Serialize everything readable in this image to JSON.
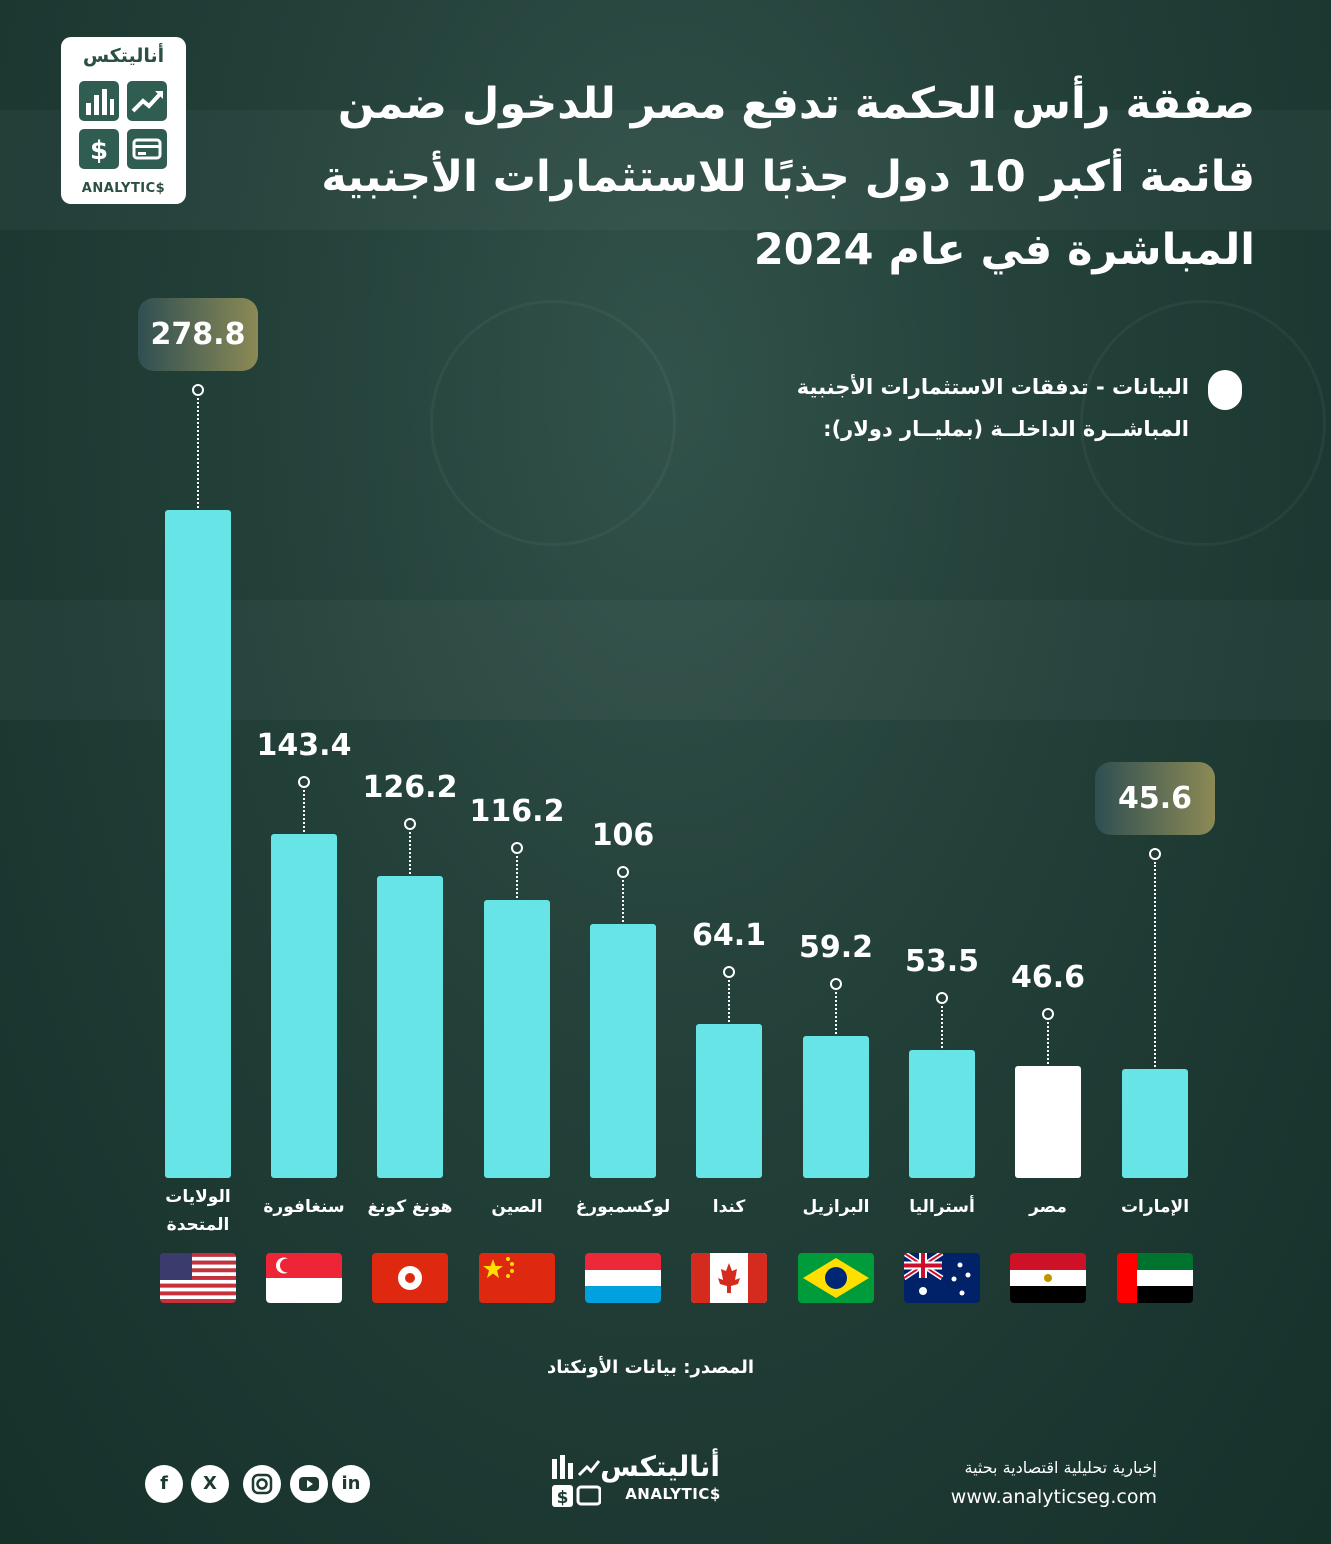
{
  "header": {
    "title_line1": "صفقة رأس الحكمة تدفع مصر للدخول ضمن",
    "title_line2": "قائمة أكبر 10 دول جذبًا للاستثمارات الأجنبية",
    "title_line3": "المباشرة في عام 2024"
  },
  "logo": {
    "arabic": "أناليتكس",
    "english": "ANALYTIC$"
  },
  "legend": {
    "line1": "البيانات - تدفقات الاستثمارات الأجنبية",
    "line2": "المباشــرة الداخلــة (بمليــار دولار):"
  },
  "colors": {
    "bar": "#66e4e6",
    "highlight_bar": "#ffffff",
    "background": "#1f3b35"
  },
  "chart_data": {
    "type": "bar",
    "categories": [
      "الولايات المتحدة",
      "سنغافورة",
      "هونغ كونغ",
      "الصين",
      "لوكسمبورغ",
      "كندا",
      "البرازيل",
      "أستراليا",
      "مصر",
      "الإمارات"
    ],
    "values": [
      278.8,
      143.4,
      126.2,
      116.2,
      106,
      64.1,
      59.2,
      53.5,
      46.6,
      45.6
    ],
    "value_labels": [
      "278.8",
      "143.4",
      "126.2",
      "116.2",
      "106",
      "64.1",
      "59.2",
      "53.5",
      "46.6",
      "45.6"
    ],
    "highlight": [
      "highlight-pill",
      "plain",
      "plain",
      "plain",
      "plain",
      "plain",
      "plain",
      "plain",
      "highlight-bar",
      "highlight-pill"
    ],
    "flags": [
      "us-flag-icon",
      "singapore-flag-icon",
      "hong-kong-flag-icon",
      "china-flag-icon",
      "luxembourg-flag-icon",
      "canada-flag-icon",
      "brazil-flag-icon",
      "australia-flag-icon",
      "egypt-flag-icon",
      "uae-flag-icon"
    ],
    "title": "",
    "xlabel": "",
    "ylabel": "",
    "ylim": [
      0,
      278.8
    ],
    "grid": false
  },
  "source": "المصدر:  بيانات الأونكتاد",
  "footer": {
    "brand_arabic": "أناليتكس",
    "brand_english": "ANALYTIC$",
    "tagline": "إخبارية تحليلية اقتصادية بحثية",
    "url": "www.analyticseg.com",
    "social": [
      "facebook-icon",
      "x-icon",
      "instagram-icon",
      "youtube-icon",
      "linkedin-icon"
    ]
  }
}
